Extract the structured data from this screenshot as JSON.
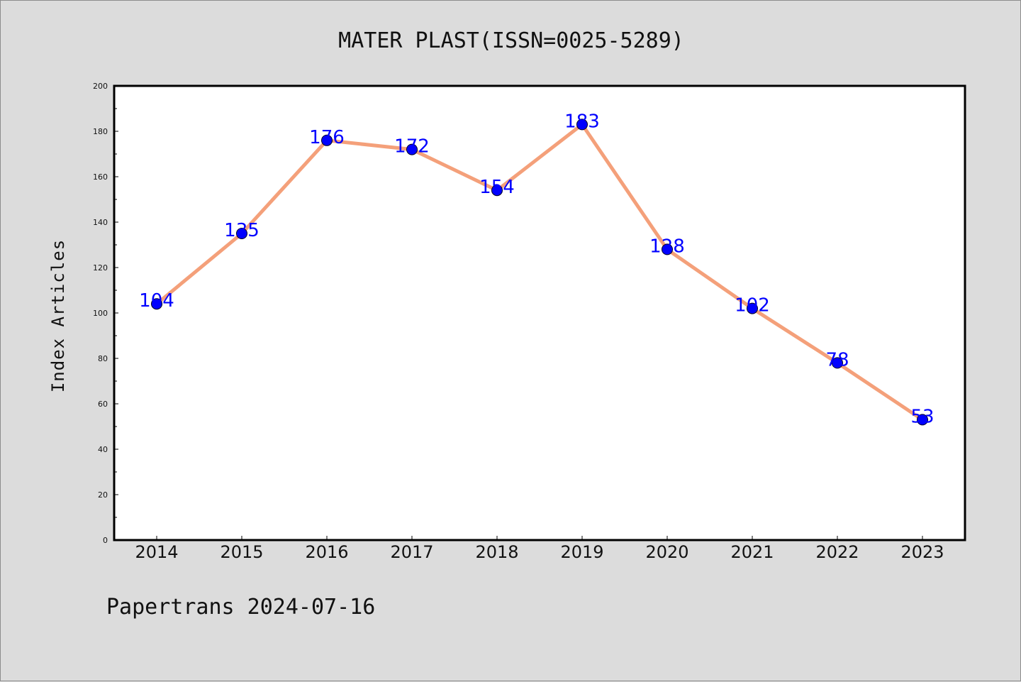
{
  "chart_data": {
    "type": "line",
    "title": "MATER PLAST(ISSN=0025-5289)",
    "ylabel": "Index Articles",
    "xlabel": "",
    "categories": [
      "2014",
      "2015",
      "2016",
      "2017",
      "2018",
      "2019",
      "2020",
      "2021",
      "2022",
      "2023"
    ],
    "values": [
      104,
      135,
      176,
      172,
      154,
      183,
      128,
      102,
      78,
      53
    ],
    "ylim": [
      0,
      200
    ],
    "yticks": [
      "0",
      "20",
      "40",
      "60",
      "80",
      "100",
      "120",
      "140",
      "160",
      "180",
      "200"
    ],
    "grid": false,
    "legend": "none",
    "colors": {
      "line": "#f4a07a",
      "marker": "#0000ff",
      "label": "#0000ff",
      "background": "#dcdcdc",
      "plot_area": "#ffffff"
    }
  },
  "footer": {
    "source": "Papertrans 2024-07-16"
  }
}
